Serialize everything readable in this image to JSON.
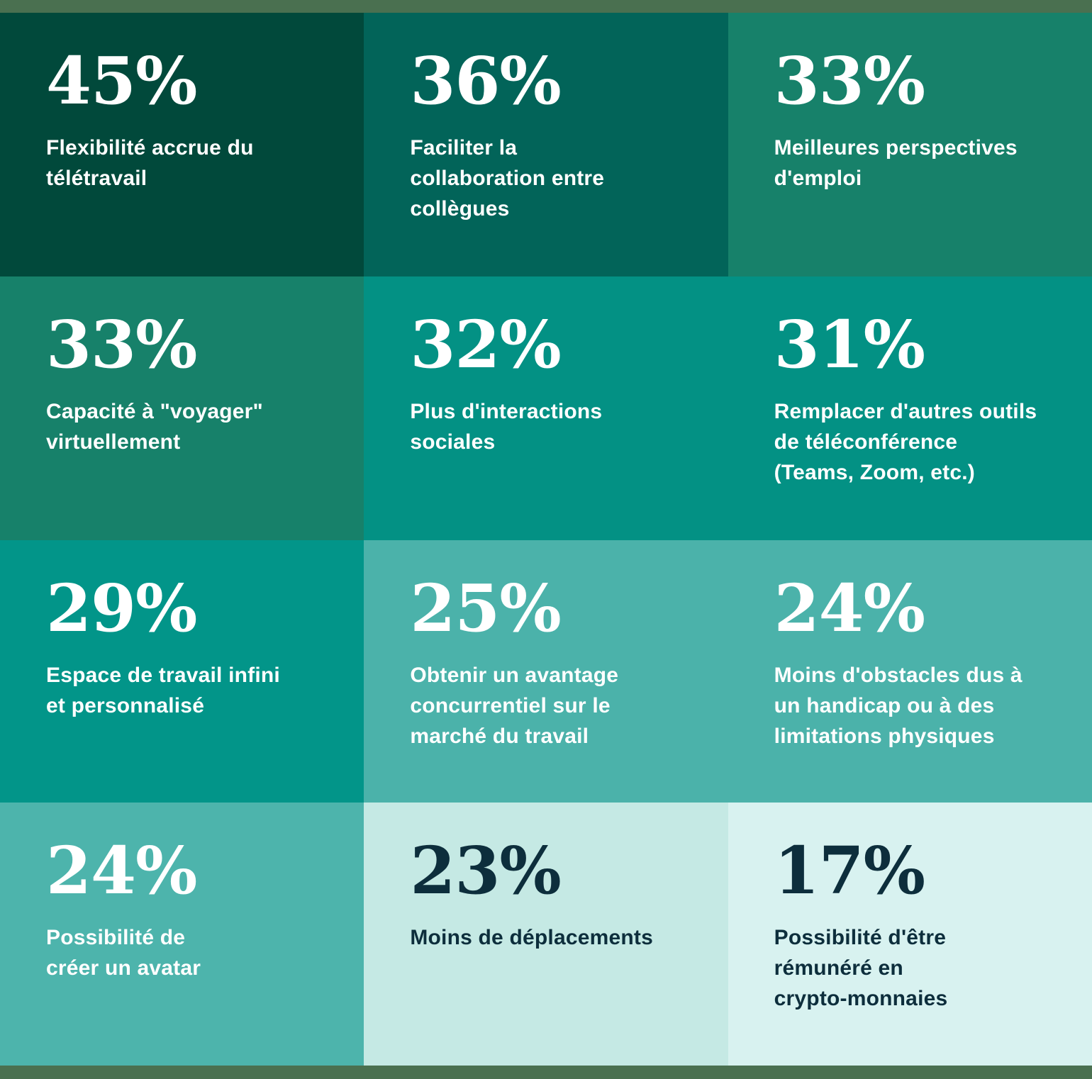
{
  "page": {
    "bar_color": "#4A7050",
    "text_light": "#FFFFFF",
    "text_dark": "#0D2E3C"
  },
  "chart_data": {
    "type": "table",
    "title": "",
    "unit": "%",
    "layout": "3x4 grid of stat tiles; background shade lightens as percentage decreases",
    "categories": [
      "Flexibilité accrue du télétravail",
      "Faciliter la collaboration entre collègues",
      "Meilleures perspectives d'emploi",
      "Capacité à \"voyager\" virtuellement",
      "Plus d'interactions sociales",
      "Remplacer d'autres outils de téléconférence (Teams, Zoom, etc.)",
      "Espace de travail infini et personnalisé",
      "Obtenir un avantage concurrentiel sur le marché du travail",
      "Moins d'obstacles dus à un handicap ou à des limitations physiques",
      "Possibilité de créer un avatar",
      "Moins de déplacements",
      "Possibilité d'être rémunéré en crypto-monnaies"
    ],
    "values": [
      45,
      36,
      33,
      33,
      32,
      31,
      29,
      25,
      24,
      24,
      23,
      17
    ],
    "palette": [
      "#01493B",
      "#026459",
      "#17816A",
      "#17816A",
      "#039184",
      "#039184",
      "#029589",
      "#4BB2AA",
      "#4BB2AA",
      "#4DB4AC",
      "#C5E9E4",
      "#D8F2F0"
    ]
  },
  "cells": [
    {
      "value": "45%",
      "label": "Flexibilité accrue du\ntélétravail",
      "bg": "#01493B",
      "fg": "#FFFFFF"
    },
    {
      "value": "36%",
      "label": "Faciliter la\ncollaboration entre\ncollègues",
      "bg": "#026459",
      "fg": "#FFFFFF"
    },
    {
      "value": "33%",
      "label": "Meilleures perspectives\nd'emploi",
      "bg": "#17816A",
      "fg": "#FFFFFF"
    },
    {
      "value": "33%",
      "label": "Capacité à \"voyager\"\nvirtuellement",
      "bg": "#17816A",
      "fg": "#FFFFFF"
    },
    {
      "value": "32%",
      "label": "Plus d'interactions\nsociales",
      "bg": "#039184",
      "fg": "#FFFFFF"
    },
    {
      "value": "31%",
      "label": "Remplacer d'autres outils\nde téléconférence\n(Teams, Zoom, etc.)",
      "bg": "#039184",
      "fg": "#FFFFFF"
    },
    {
      "value": "29%",
      "label": "Espace de travail infini\net personnalisé",
      "bg": "#029589",
      "fg": "#FFFFFF"
    },
    {
      "value": "25%",
      "label": "Obtenir un avantage\nconcurrentiel sur le\nmarché du travail",
      "bg": "#4BB2AA",
      "fg": "#FFFFFF"
    },
    {
      "value": "24%",
      "label": "Moins d'obstacles dus à\nun handicap ou à des\nlimitations physiques",
      "bg": "#4BB2AA",
      "fg": "#FFFFFF"
    },
    {
      "value": "24%",
      "label": "Possibilité de\ncréer un avatar",
      "bg": "#4DB4AC",
      "fg": "#FFFFFF"
    },
    {
      "value": "23%",
      "label": "Moins de déplacements",
      "bg": "#C5E9E4",
      "fg": "#0D2E3C"
    },
    {
      "value": "17%",
      "label": "Possibilité d'être\nrémunéré en\ncrypto-monnaies",
      "bg": "#D8F2F0",
      "fg": "#0D2E3C"
    }
  ]
}
